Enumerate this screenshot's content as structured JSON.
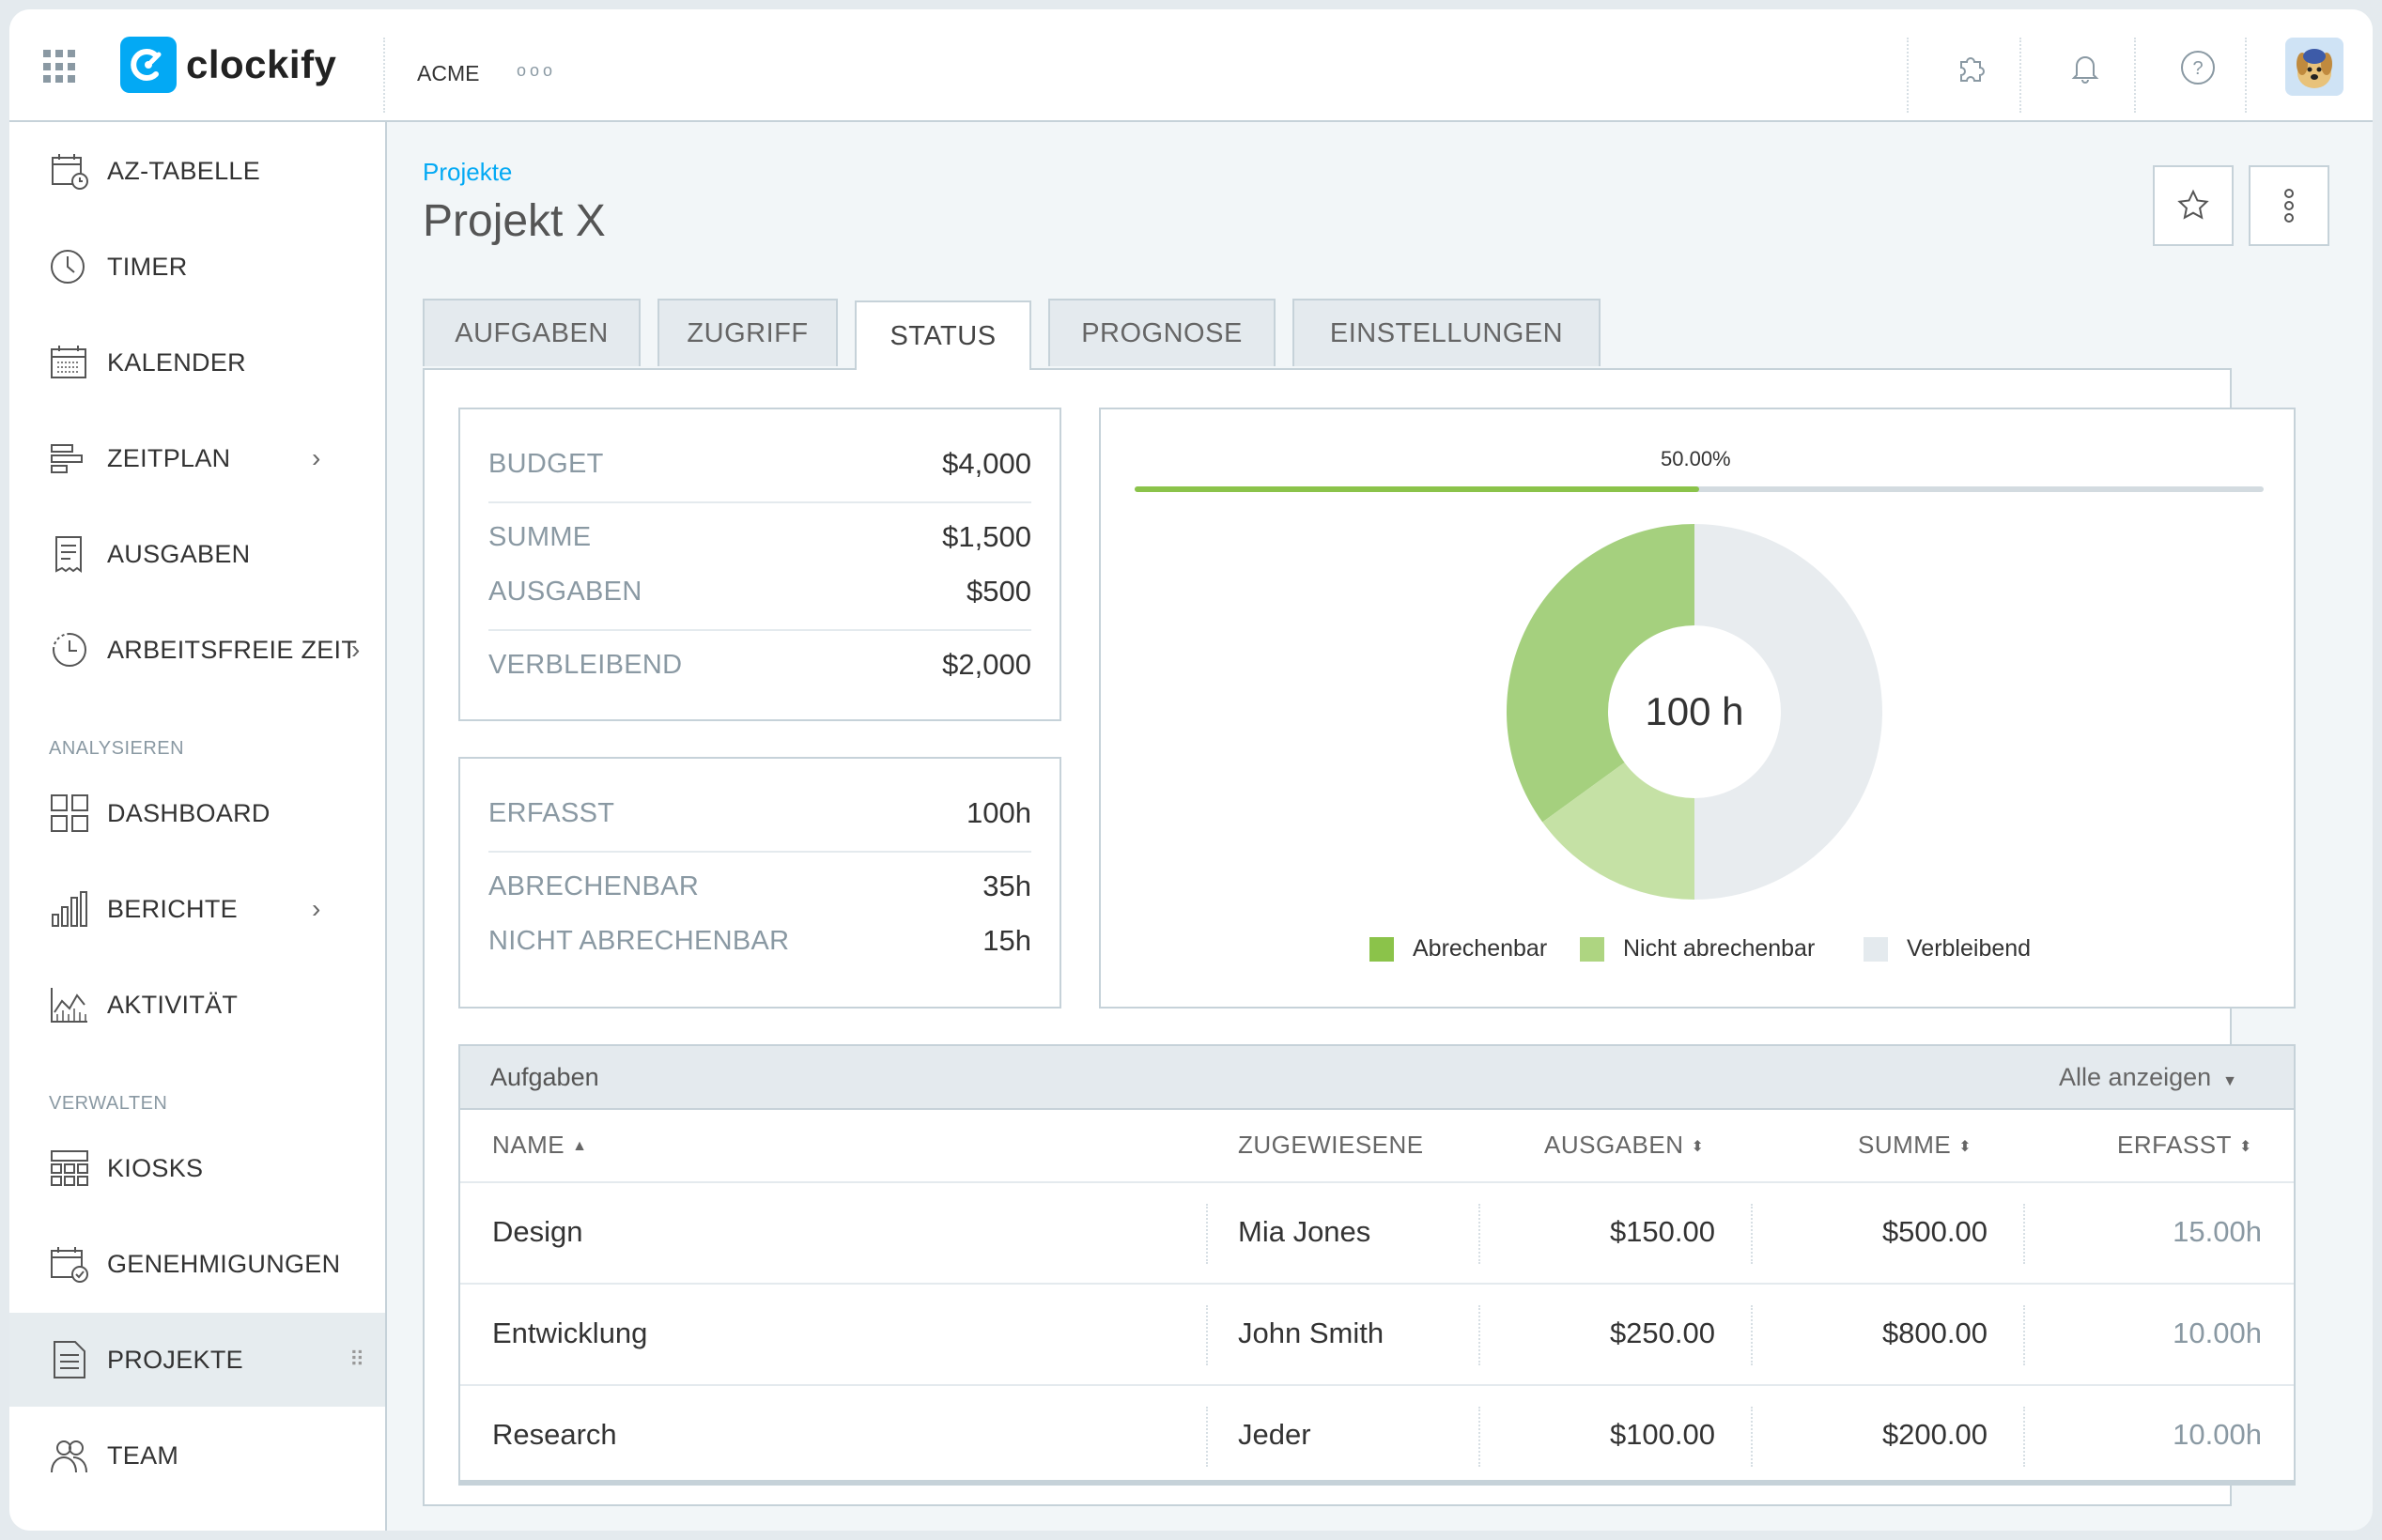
{
  "app": {
    "name": "clockify",
    "workspace": "ACME",
    "more_label": "ooo"
  },
  "colors": {
    "accent": "#03a9f4",
    "billable": "#8bc34a",
    "non_billable": "#c5e1a5",
    "remaining": "#e4eaee"
  },
  "sidebar": {
    "items": [
      {
        "label": "AZ-TABELLE",
        "icon": "timesheet-icon"
      },
      {
        "label": "TIMER",
        "icon": "clock-icon"
      },
      {
        "label": "KALENDER",
        "icon": "calendar-icon"
      },
      {
        "label": "ZEITPLAN",
        "icon": "schedule-icon",
        "chevron": "›"
      },
      {
        "label": "AUSGABEN",
        "icon": "receipt-icon"
      },
      {
        "label": "ARBEITSFREIE ZEIT",
        "icon": "time-off-icon",
        "chevron": "›"
      },
      {
        "label": "DASHBOARD",
        "icon": "dashboard-icon"
      },
      {
        "label": "BERICHTE",
        "icon": "reports-icon",
        "chevron": "›"
      },
      {
        "label": "AKTIVITÄT",
        "icon": "activity-icon"
      },
      {
        "label": "KIOSKS",
        "icon": "kiosk-icon"
      },
      {
        "label": "GENEHMIGUNGEN",
        "icon": "approvals-icon"
      },
      {
        "label": "PROJEKTE",
        "icon": "projects-icon",
        "drag": "⠿"
      },
      {
        "label": "TEAM",
        "icon": "team-icon"
      }
    ],
    "sections": {
      "analyze": "ANALYSIEREN",
      "manage": "VERWALTEN"
    }
  },
  "page": {
    "breadcrumb": "Projekte",
    "title": "Projekt X"
  },
  "tabs": [
    {
      "label": "AUFGABEN"
    },
    {
      "label": "ZUGRIFF"
    },
    {
      "label": "STATUS"
    },
    {
      "label": "PROGNOSE"
    },
    {
      "label": "EINSTELLUNGEN"
    }
  ],
  "budget_card": {
    "budget_label": "BUDGET",
    "budget_value": "$4,000",
    "sum_label": "SUMME",
    "sum_value": "$1,500",
    "expenses_label": "AUSGABEN",
    "expenses_value": "$500",
    "remaining_label": "VERBLEIBEND",
    "remaining_value": "$2,000"
  },
  "time_card": {
    "tracked_label": "ERFASST",
    "tracked_value": "100h",
    "billable_label": "ABRECHENBAR",
    "billable_value": "35h",
    "nonbillable_label": "NICHT ABRECHENBAR",
    "nonbillable_value": "15h"
  },
  "progress": {
    "label": "50.00%",
    "fraction": 0.5
  },
  "chart_data": {
    "type": "pie",
    "center_label": "100 h",
    "categories": [
      "Abrechenbar",
      "Nicht abrechenbar",
      "Verbleibend"
    ],
    "values": [
      35,
      15,
      50
    ],
    "colors": [
      "#a5d07e",
      "#c5e1a5",
      "#e8ecef"
    ],
    "legend_colors": [
      "#8bc34a",
      "#aed581",
      "#e4eaee"
    ],
    "legend": "bottom"
  },
  "tasks_table": {
    "title": "Aufgaben",
    "show_all": "Alle anzeigen",
    "columns": {
      "name": "NAME",
      "assignees": "ZUGEWIESENE",
      "expenses": "AUSGABEN",
      "sum": "SUMME",
      "tracked": "ERFASST"
    },
    "rows": [
      {
        "name": "Design",
        "assignees": "Mia Jones",
        "expenses": "$150.00",
        "sum": "$500.00",
        "tracked": "15.00h"
      },
      {
        "name": "Entwicklung",
        "assignees": "John Smith",
        "expenses": "$250.00",
        "sum": "$800.00",
        "tracked": "10.00h"
      },
      {
        "name": "Research",
        "assignees": "Jeder",
        "expenses": "$100.00",
        "sum": "$200.00",
        "tracked": "10.00h"
      }
    ]
  }
}
